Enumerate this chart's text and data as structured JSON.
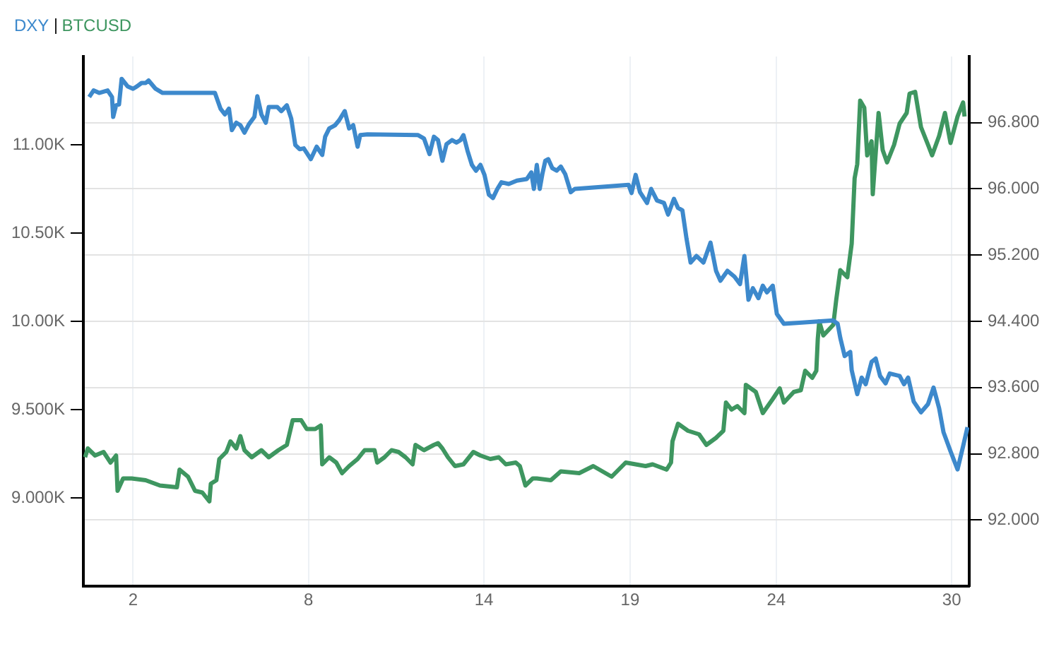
{
  "chart_data": {
    "type": "line",
    "legend": "top left",
    "grid": true,
    "marker": "none",
    "line_style": "solid",
    "xlim": [
      0.3,
      30.6
    ],
    "xticks": [
      2,
      8,
      14,
      19,
      24,
      30
    ],
    "ylim": [
      8500,
      11500
    ],
    "yticks": [
      {
        "value": 9000,
        "label": "9.000K"
      },
      {
        "value": 9500,
        "label": "9.500K"
      },
      {
        "value": 10000,
        "label": "10.00K"
      },
      {
        "value": 10500,
        "label": "10.50K"
      },
      {
        "value": 11000,
        "label": "11.00K"
      }
    ],
    "y2lim": [
      91.2,
      97.6
    ],
    "y2ticks": [
      {
        "value": 92,
        "label": "92.000"
      },
      {
        "value": 92.8,
        "label": "92.800"
      },
      {
        "value": 93.6,
        "label": "93.600"
      },
      {
        "value": 94.4,
        "label": "94.400"
      },
      {
        "value": 95.2,
        "label": "95.200"
      },
      {
        "value": 96,
        "label": "96.000"
      },
      {
        "value": 96.8,
        "label": "96.800"
      }
    ],
    "series": [
      {
        "name": "DXY",
        "color": "#3d89cc",
        "axis": "y2",
        "x": [
          0.5,
          0.65,
          0.84,
          1.13,
          1.28,
          1.32,
          1.42,
          1.52,
          1.61,
          1.81,
          2,
          2.14,
          2.29,
          2.43,
          2.53,
          2.77,
          3.01,
          4.8,
          4.99,
          5.14,
          5.28,
          5.38,
          5.53,
          5.67,
          5.81,
          5.96,
          6.15,
          6.25,
          6.39,
          6.54,
          6.64,
          6.93,
          7.07,
          7.26,
          7.41,
          7.55,
          7.7,
          7.84,
          8.08,
          8.28,
          8.47,
          8.57,
          8.71,
          8.91,
          9.05,
          9.24,
          9.39,
          9.53,
          9.68,
          9.77,
          10.02,
          11.75,
          11.95,
          12.14,
          12.29,
          12.43,
          12.58,
          12.72,
          12.91,
          13.06,
          13.2,
          13.3,
          13.44,
          13.59,
          13.73,
          13.88,
          14.02,
          14.17,
          14.31,
          14.46,
          14.6,
          14.85,
          15.13,
          15.47,
          15.62,
          15.71,
          15.81,
          15.91,
          16,
          16.1,
          16.2,
          16.34,
          16.49,
          16.63,
          16.78,
          16.97,
          17.11,
          18.95,
          19.05,
          19.19,
          19.34,
          19.58,
          19.72,
          19.92,
          20.16,
          20.3,
          20.5,
          20.64,
          20.79,
          20.93,
          21.07,
          21.27,
          21.51,
          21.75,
          21.94,
          22.09,
          22.33,
          22.57,
          22.76,
          22.91,
          23.05,
          23.2,
          23.39,
          23.54,
          23.68,
          23.88,
          24.02,
          24.26,
          25.95,
          26.1,
          26.19,
          26.34,
          26.53,
          26.58,
          26.77,
          26.92,
          27.06,
          27.26,
          27.4,
          27.55,
          27.74,
          27.88,
          28.22,
          28.37,
          28.51,
          28.7,
          28.95,
          29.19,
          29.38,
          29.57,
          29.72,
          29.96,
          30.2,
          30.39,
          30.54
        ],
        "values": [
          97.11,
          97.19,
          97.16,
          97.19,
          97.11,
          96.87,
          97.01,
          97.02,
          97.33,
          97.24,
          97.21,
          97.24,
          97.28,
          97.28,
          97.31,
          97.21,
          97.16,
          97.16,
          96.97,
          96.9,
          96.97,
          96.71,
          96.8,
          96.77,
          96.68,
          96.78,
          96.87,
          97.12,
          96.9,
          96.8,
          96.99,
          96.99,
          96.94,
          97.01,
          96.85,
          96.53,
          96.48,
          96.49,
          96.36,
          96.51,
          96.41,
          96.63,
          96.73,
          96.77,
          96.83,
          96.94,
          96.73,
          96.77,
          96.51,
          96.65,
          96.66,
          96.65,
          96.61,
          96.42,
          96.63,
          96.59,
          96.34,
          96.54,
          96.59,
          96.56,
          96.59,
          96.65,
          96.46,
          96.29,
          96.22,
          96.29,
          96.17,
          95.93,
          95.89,
          96,
          96.08,
          96.06,
          96.1,
          96.12,
          96.2,
          96,
          96.29,
          96,
          96.18,
          96.34,
          96.36,
          96.25,
          96.22,
          96.27,
          96.18,
          95.96,
          96,
          96.05,
          95.95,
          96.17,
          95.96,
          95.83,
          96,
          95.86,
          95.83,
          95.69,
          95.88,
          95.77,
          95.74,
          95.4,
          95.11,
          95.19,
          95.11,
          95.35,
          95.01,
          94.89,
          95.01,
          94.94,
          94.85,
          95.19,
          94.66,
          94.8,
          94.68,
          94.83,
          94.75,
          94.83,
          94.49,
          94.37,
          94.41,
          94.37,
          94.2,
          93.98,
          94.03,
          93.81,
          93.52,
          93.72,
          93.64,
          93.91,
          93.95,
          93.74,
          93.65,
          93.77,
          93.74,
          93.64,
          93.72,
          93.43,
          93.3,
          93.4,
          93.6,
          93.35,
          93.06,
          92.83,
          92.61,
          92.89,
          93.12
        ]
      },
      {
        "name": "BTCUSD",
        "color": "#3e9660",
        "x": [
          0.36,
          0.45,
          0.7,
          0.99,
          1.23,
          1.42,
          1.47,
          1.66,
          1.95,
          2.43,
          2.92,
          3.5,
          3.59,
          3.88,
          4.12,
          4.37,
          4.61,
          4.66,
          4.85,
          4.95,
          5.19,
          5.33,
          5.53,
          5.67,
          5.81,
          6.06,
          6.39,
          6.64,
          6.97,
          7.26,
          7.46,
          7.75,
          7.94,
          8.23,
          8.42,
          8.47,
          8.71,
          8.95,
          9.15,
          9.39,
          9.68,
          9.92,
          10.26,
          10.35,
          10.6,
          10.84,
          11.08,
          11.32,
          11.56,
          11.66,
          11.95,
          12.29,
          12.43,
          12.58,
          12.77,
          13.01,
          13.3,
          13.64,
          13.88,
          14.22,
          14.51,
          14.75,
          15.09,
          15.23,
          15.42,
          15.67,
          15.81,
          16.29,
          16.63,
          17.26,
          17.74,
          18.37,
          18.85,
          19.53,
          19.77,
          20.25,
          20.4,
          20.45,
          20.64,
          20.98,
          21.36,
          21.61,
          21.94,
          22.19,
          22.28,
          22.47,
          22.67,
          22.91,
          22.96,
          23.3,
          23.54,
          23.88,
          24.12,
          24.26,
          24.6,
          24.84,
          24.99,
          25.23,
          25.37,
          25.42,
          25.47,
          25.61,
          25.95,
          26.05,
          26.19,
          26.43,
          26.58,
          26.68,
          26.77,
          26.87,
          27.01,
          27.11,
          27.26,
          27.3,
          27.5,
          27.64,
          27.79,
          28.03,
          28.22,
          28.46,
          28.56,
          28.75,
          28.95,
          29.19,
          29.33,
          29.57,
          29.77,
          29.96,
          30.2,
          30.39,
          30.44
        ],
        "values": [
          9230,
          9280,
          9240,
          9260,
          9200,
          9240,
          9040,
          9110,
          9110,
          9100,
          9070,
          9060,
          9160,
          9120,
          9040,
          9030,
          8980,
          9080,
          9100,
          9220,
          9260,
          9320,
          9280,
          9350,
          9270,
          9230,
          9270,
          9230,
          9270,
          9300,
          9440,
          9440,
          9390,
          9390,
          9410,
          9190,
          9230,
          9200,
          9140,
          9180,
          9220,
          9270,
          9270,
          9200,
          9230,
          9270,
          9260,
          9230,
          9190,
          9300,
          9270,
          9300,
          9310,
          9280,
          9230,
          9180,
          9190,
          9260,
          9240,
          9220,
          9230,
          9190,
          9200,
          9180,
          9070,
          9110,
          9110,
          9100,
          9150,
          9140,
          9180,
          9120,
          9200,
          9180,
          9190,
          9160,
          9200,
          9320,
          9420,
          9380,
          9360,
          9300,
          9340,
          9380,
          9540,
          9500,
          9520,
          9480,
          9640,
          9600,
          9480,
          9560,
          9620,
          9540,
          9600,
          9610,
          9720,
          9680,
          9720,
          9900,
          10000,
          9920,
          9980,
          10120,
          10290,
          10250,
          10440,
          10810,
          10890,
          11250,
          11210,
          10940,
          11020,
          10720,
          11180,
          10970,
          10900,
          11000,
          11120,
          11180,
          11290,
          11300,
          11100,
          11000,
          10940,
          11050,
          11180,
          11010,
          11160,
          11240,
          11160
        ]
      }
    ]
  }
}
